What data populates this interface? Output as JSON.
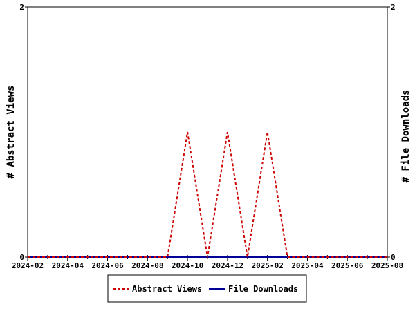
{
  "chart_data": {
    "type": "line",
    "ylabel_left": "# Abstract Views",
    "ylabel_right": "# File Downloads",
    "x": [
      "2024-02",
      "2024-03",
      "2024-04",
      "2024-05",
      "2024-06",
      "2024-07",
      "2024-08",
      "2024-09",
      "2024-10",
      "2024-11",
      "2024-12",
      "2025-01",
      "2025-02",
      "2025-03",
      "2025-04",
      "2025-05",
      "2025-06",
      "2025-07",
      "2025-08"
    ],
    "xticks": [
      "2024-02",
      "2024-04",
      "2024-06",
      "2024-08",
      "2024-10",
      "2024-12",
      "2025-02",
      "2025-04",
      "2025-06",
      "2025-08"
    ],
    "ylim_left": [
      0,
      2
    ],
    "ylim_right": [
      0,
      2
    ],
    "yticks_left": [
      "0",
      "2"
    ],
    "yticks_right": [
      "0",
      "2"
    ],
    "series": [
      {
        "name": "Abstract Views",
        "axis": "left",
        "color": "#cc0000",
        "style": "dashed",
        "values": [
          0,
          0,
          0,
          0,
          0,
          0,
          0,
          0,
          1,
          0,
          1,
          0,
          1,
          0,
          0,
          0,
          0,
          0,
          0
        ]
      },
      {
        "name": "File Downloads",
        "axis": "right",
        "color": "#000099",
        "style": "solid",
        "values": [
          0,
          0,
          0,
          0,
          0,
          0,
          0,
          0,
          0,
          0,
          0,
          0,
          0,
          0,
          0,
          0,
          0,
          0,
          0
        ]
      }
    ],
    "legend_position": "bottom"
  }
}
